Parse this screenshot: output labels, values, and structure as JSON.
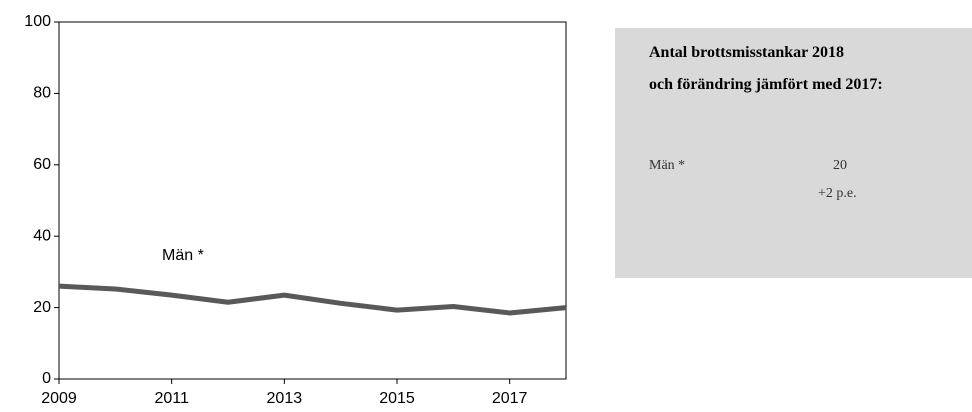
{
  "chart_data": {
    "type": "line",
    "x": [
      2009,
      2010,
      2011,
      2012,
      2013,
      2014,
      2015,
      2016,
      2017,
      2018
    ],
    "series": [
      {
        "name": "Män *",
        "color": "#595959",
        "values": [
          26,
          25.2,
          23.5,
          21.5,
          23.5,
          21.2,
          19.3,
          20.3,
          18.5,
          20
        ]
      }
    ],
    "xlim": [
      2009,
      2018
    ],
    "xticks": [
      2009,
      2011,
      2013,
      2015,
      2017
    ],
    "ylim": [
      0,
      100
    ],
    "yticks": [
      0,
      20,
      40,
      60,
      80,
      100
    ],
    "grid": false
  },
  "summary": {
    "title": [
      "Antal brottsmisstankar 2018",
      "och förändring jämfört med 2017:"
    ],
    "rows": [
      {
        "label": "Män *",
        "value": 20,
        "change": "+2 p.e."
      }
    ]
  }
}
